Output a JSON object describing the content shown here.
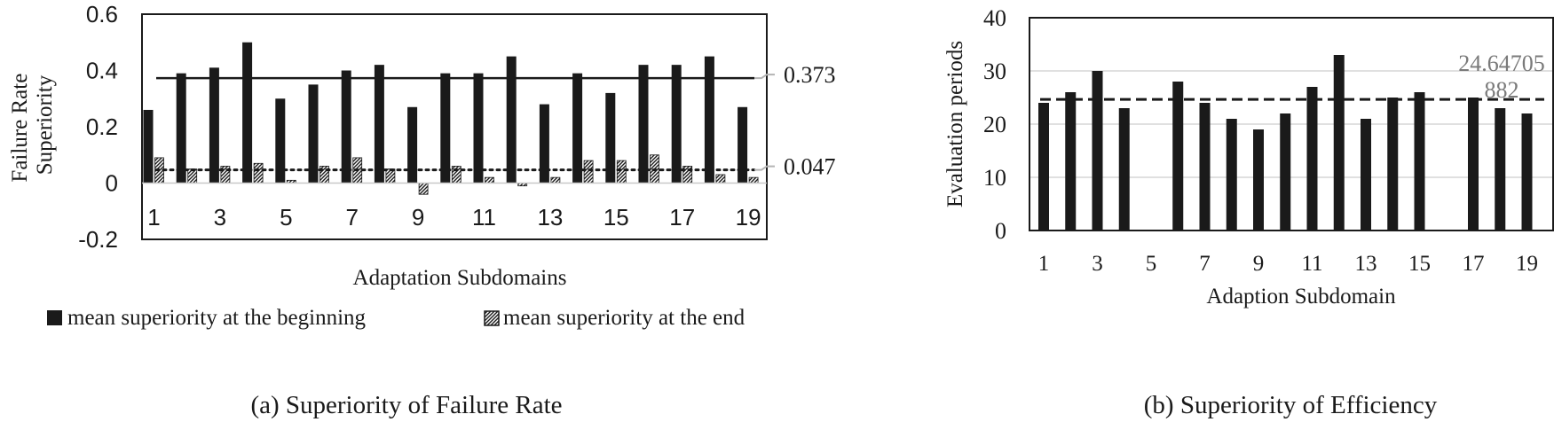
{
  "chart_data": [
    {
      "type": "bar",
      "caption": "(a) Superiority of Failure Rate",
      "xlabel": "Adaptation Subdomains",
      "ylabel_lines": [
        "Failure Rate",
        "Superiority"
      ],
      "ylim": [
        -0.2,
        0.6
      ],
      "yticks": [
        "-0.2",
        "0",
        "0.2",
        "0.4",
        "0.6"
      ],
      "ytick_values": [
        -0.2,
        0,
        0.2,
        0.4,
        0.6
      ],
      "categories": [
        "1",
        "2",
        "3",
        "4",
        "5",
        "6",
        "7",
        "8",
        "9",
        "10",
        "11",
        "12",
        "13",
        "14",
        "15",
        "16",
        "17",
        "18",
        "19"
      ],
      "xtick_labels": [
        "1",
        "3",
        "5",
        "7",
        "9",
        "11",
        "13",
        "15",
        "17",
        "19"
      ],
      "grid": false,
      "legend_position": "bottom",
      "series": [
        {
          "name": "mean superiority at the beginning",
          "style": "solid",
          "values": [
            0.26,
            0.39,
            0.41,
            0.5,
            0.3,
            0.35,
            0.4,
            0.42,
            0.27,
            0.39,
            0.39,
            0.45,
            0.28,
            0.39,
            0.32,
            0.42,
            0.42,
            0.45,
            0.27
          ]
        },
        {
          "name": "mean superiority at the end",
          "style": "hatched",
          "values": [
            0.09,
            0.05,
            0.06,
            0.07,
            0.01,
            0.06,
            0.09,
            0.05,
            -0.04,
            0.06,
            0.02,
            -0.01,
            0.02,
            0.08,
            0.08,
            0.1,
            0.06,
            0.03,
            0.02
          ]
        }
      ],
      "reference_lines": [
        {
          "value": 0.373,
          "label": "0.373",
          "style": "solid"
        },
        {
          "value": 0.047,
          "label": "0.047",
          "style": "dotted"
        }
      ]
    },
    {
      "type": "bar",
      "caption": "(b) Superiority of Efficiency",
      "xlabel": "Adaption Subdomain",
      "ylabel": "Evaluation periods",
      "ylim": [
        0,
        40
      ],
      "yticks": [
        "0",
        "10",
        "20",
        "30",
        "40"
      ],
      "ytick_values": [
        0,
        10,
        20,
        30,
        40
      ],
      "categories": [
        "1",
        "2",
        "3",
        "4",
        "5",
        "6",
        "7",
        "8",
        "9",
        "10",
        "11",
        "12",
        "13",
        "14",
        "15",
        "16",
        "17",
        "18",
        "19"
      ],
      "xtick_labels": [
        "1",
        "3",
        "5",
        "7",
        "9",
        "11",
        "13",
        "15",
        "17",
        "19"
      ],
      "grid": true,
      "series": [
        {
          "name": "Evaluation periods",
          "style": "solid",
          "values": [
            24,
            26,
            30,
            23,
            null,
            28,
            24,
            21,
            19,
            22,
            27,
            33,
            21,
            25,
            26,
            null,
            25,
            23,
            22
          ]
        }
      ],
      "reference_lines": [
        {
          "value": 24.6470588,
          "label_lines": [
            "24.64705",
            "882"
          ],
          "style": "dashed"
        }
      ]
    }
  ]
}
